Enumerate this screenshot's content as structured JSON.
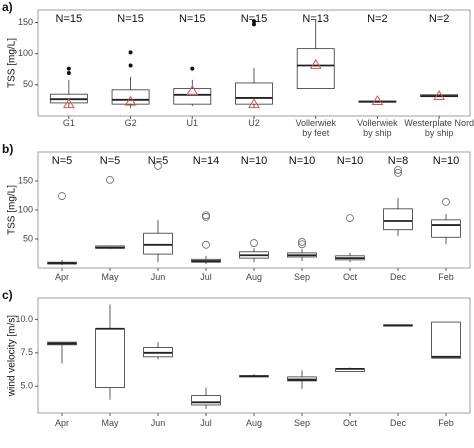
{
  "chart_data": [
    {
      "type": "box",
      "panel": "a)",
      "ylabel": "TSS [mg/L]",
      "categories": [
        [
          "G1"
        ],
        [
          "G2"
        ],
        [
          "U1"
        ],
        [
          "U2"
        ],
        [
          "Vollerwiek",
          "by feet"
        ],
        [
          "Vollerwiek",
          "by ship"
        ],
        [
          "Westerplate Nord",
          "by ship"
        ]
      ],
      "n_labels": [
        "N=15",
        "N=15",
        "N=15",
        "N=15",
        "N=13",
        "N=2",
        "N=2"
      ],
      "boxes": [
        {
          "whisker_low": 13,
          "q1": 21,
          "median": 27,
          "q3": 35,
          "whisker_high": 58,
          "mean": 19,
          "outliers": [
            69,
            76
          ]
        },
        {
          "whisker_low": 13,
          "q1": 19,
          "median": 26,
          "q3": 42,
          "whisker_high": 63,
          "mean": 23,
          "outliers": [
            81,
            102
          ]
        },
        {
          "whisker_low": 16,
          "q1": 19,
          "median": 34,
          "q3": 44,
          "whisker_high": 58,
          "mean": 40,
          "outliers": [
            76
          ]
        },
        {
          "whisker_low": 13,
          "q1": 19,
          "median": 29,
          "q3": 53,
          "whisker_high": 77,
          "mean": 19,
          "outliers": [
            147,
            152
          ]
        },
        {
          "whisker_low": 44,
          "q1": 44,
          "median": 81,
          "q3": 108,
          "whisker_high": 155,
          "mean": 82,
          "outliers": []
        },
        {
          "whisker_low": 22,
          "q1": 22,
          "median": 23,
          "q3": 24,
          "whisker_high": 24,
          "mean": 24,
          "outliers": []
        },
        {
          "whisker_low": 31,
          "q1": 31,
          "median": 32,
          "q3": 34,
          "whisker_high": 34,
          "mean": 32,
          "outliers": []
        }
      ],
      "ylim": [
        0,
        170
      ],
      "yticks": [
        50,
        100,
        150
      ],
      "outlier_style": "dot",
      "mean_color": "#d9534f",
      "box_color": "#333333"
    },
    {
      "type": "box",
      "panel": "b)",
      "ylabel": "TSS [mg/L]",
      "categories": [
        [
          "Apr"
        ],
        [
          "May"
        ],
        [
          "Jun"
        ],
        [
          "Jul"
        ],
        [
          "Aug"
        ],
        [
          "Sep"
        ],
        [
          "Oct"
        ],
        [
          "Dec"
        ],
        [
          "Feb"
        ]
      ],
      "n_labels": [
        "N=5",
        "N=5",
        "N=5",
        "N=14",
        "N=10",
        "N=10",
        "N=10",
        "N=8",
        "N=10"
      ],
      "boxes": [
        {
          "whisker_low": 5,
          "q1": 7,
          "median": 8,
          "q3": 10,
          "whisker_high": 14,
          "outliers": [
            124
          ]
        },
        {
          "whisker_low": 33,
          "q1": 34,
          "median": 35,
          "q3": 38,
          "whisker_high": 39,
          "outliers": [
            152
          ]
        },
        {
          "whisker_low": 10,
          "q1": 24,
          "median": 40,
          "q3": 60,
          "whisker_high": 83,
          "outliers": [
            176
          ]
        },
        {
          "whisker_low": 7,
          "q1": 10,
          "median": 12,
          "q3": 15,
          "whisker_high": 21,
          "outliers": [
            40,
            88,
            91
          ]
        },
        {
          "whisker_low": 10,
          "q1": 17,
          "median": 22,
          "q3": 28,
          "whisker_high": 34,
          "outliers": [
            43
          ]
        },
        {
          "whisker_low": 12,
          "q1": 19,
          "median": 22,
          "q3": 26,
          "whisker_high": 33,
          "outliers": [
            41,
            45
          ]
        },
        {
          "whisker_low": 10,
          "q1": 14,
          "median": 17,
          "q3": 21,
          "whisker_high": 26,
          "outliers": [
            86
          ]
        },
        {
          "whisker_low": 55,
          "q1": 66,
          "median": 81,
          "q3": 102,
          "whisker_high": 121,
          "outliers": [
            164,
            169
          ]
        },
        {
          "whisker_low": 41,
          "q1": 53,
          "median": 74,
          "q3": 83,
          "whisker_high": 93,
          "outliers": [
            114
          ]
        }
      ],
      "ylim": [
        0,
        200
      ],
      "yticks": [
        50,
        100,
        150
      ],
      "outlier_style": "circle",
      "box_color": "#333333"
    },
    {
      "type": "box",
      "panel": "c)",
      "ylabel": "wind velocity [m/s]",
      "categories": [
        [
          "Apr"
        ],
        [
          "May"
        ],
        [
          "Jun"
        ],
        [
          "Jul"
        ],
        [
          "Aug"
        ],
        [
          "Sep"
        ],
        [
          "Oct"
        ],
        [
          "Dec"
        ],
        [
          "Feb"
        ]
      ],
      "boxes": [
        {
          "whisker_low": 6.7,
          "q1": 8.1,
          "median": 8.2,
          "q3": 8.3,
          "whisker_high": 8.3,
          "outliers": []
        },
        {
          "whisker_low": 4.0,
          "q1": 4.9,
          "median": 9.3,
          "q3": 9.3,
          "whisker_high": 11.1,
          "outliers": []
        },
        {
          "whisker_low": 7.0,
          "q1": 7.2,
          "median": 7.5,
          "q3": 7.9,
          "whisker_high": 8.3,
          "outliers": []
        },
        {
          "whisker_low": 3.3,
          "q1": 3.6,
          "median": 3.8,
          "q3": 4.3,
          "whisker_high": 4.9,
          "outliers": []
        },
        {
          "whisker_low": 5.7,
          "q1": 5.7,
          "median": 5.75,
          "q3": 5.8,
          "whisker_high": 5.9,
          "outliers": []
        },
        {
          "whisker_low": 4.8,
          "q1": 5.4,
          "median": 5.5,
          "q3": 5.7,
          "whisker_high": 6.2,
          "outliers": []
        },
        {
          "whisker_low": 6.1,
          "q1": 6.1,
          "median": 6.3,
          "q3": 6.3,
          "whisker_high": 6.4,
          "outliers": []
        },
        {
          "whisker_low": 9.5,
          "q1": 9.5,
          "median": 9.55,
          "q3": 9.6,
          "whisker_high": 9.6,
          "outliers": []
        },
        {
          "whisker_low": 7.1,
          "q1": 7.1,
          "median": 7.2,
          "q3": 9.8,
          "whisker_high": 9.8,
          "outliers": []
        }
      ],
      "ylim": [
        3,
        11.6
      ],
      "yticks": [
        {
          "value": 5,
          "label": "5.0"
        },
        7.5,
        {
          "value": 10,
          "label": "10.0"
        }
      ],
      "box_color": "#333333"
    }
  ]
}
